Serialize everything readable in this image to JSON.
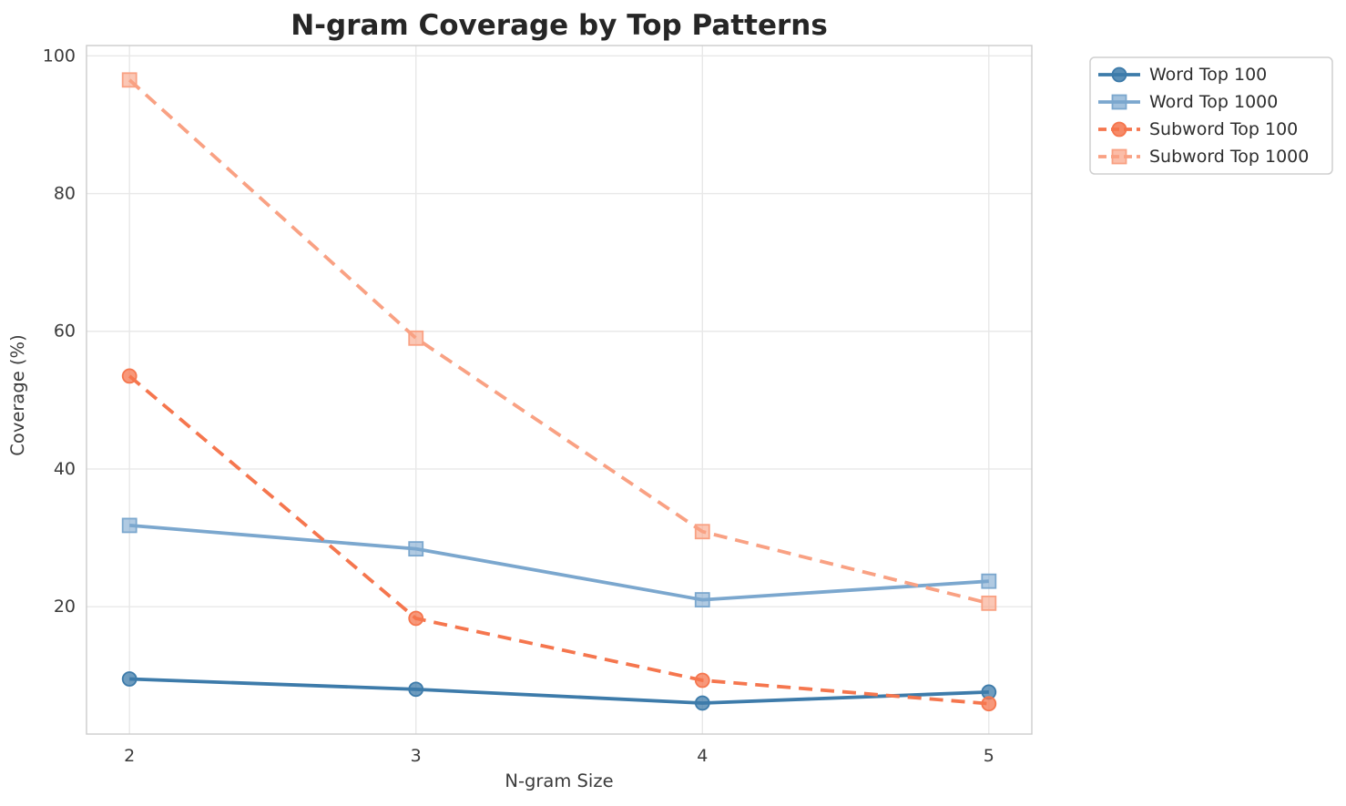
{
  "chart_data": {
    "type": "line",
    "title": "N-gram Coverage by Top Patterns",
    "xlabel": "N-gram Size",
    "ylabel": "Coverage (%)",
    "x": [
      2,
      3,
      4,
      5
    ],
    "xtick_labels": [
      "2",
      "3",
      "4",
      "5"
    ],
    "ytick_values": [
      20,
      40,
      60,
      80,
      100
    ],
    "ytick_labels": [
      "20",
      "40",
      "60",
      "80",
      "100"
    ],
    "xlim": [
      1.85,
      5.15
    ],
    "ylim": [
      1.5,
      101.5
    ],
    "grid": true,
    "legend_position": "outside-upper-right",
    "series": [
      {
        "name": "Word Top 100",
        "values": [
          9.5,
          8.0,
          6.0,
          7.6
        ],
        "color": "#3D7BAA",
        "linestyle": "solid",
        "marker": "circle"
      },
      {
        "name": "Word Top 1000",
        "values": [
          31.8,
          28.4,
          21.0,
          23.7
        ],
        "color": "#7BA7CE",
        "linestyle": "solid",
        "marker": "square"
      },
      {
        "name": "Subword Top 100",
        "values": [
          53.5,
          18.3,
          9.3,
          5.9
        ],
        "color": "#F5764E",
        "linestyle": "dashed",
        "marker": "circle"
      },
      {
        "name": "Subword Top 1000",
        "values": [
          96.5,
          59.0,
          30.9,
          20.5
        ],
        "color": "#F9A183",
        "linestyle": "dashed",
        "marker": "square"
      }
    ],
    "styles": {
      "grid_color": "#E8E8E8",
      "spine_color": "#CCCCCC",
      "background": "#FFFFFF",
      "tick_text_color": "#3B3B3B",
      "title_color": "#262626",
      "legend_text_color": "#2E2E2E",
      "legend_border_color": "#CFCFCF"
    }
  }
}
